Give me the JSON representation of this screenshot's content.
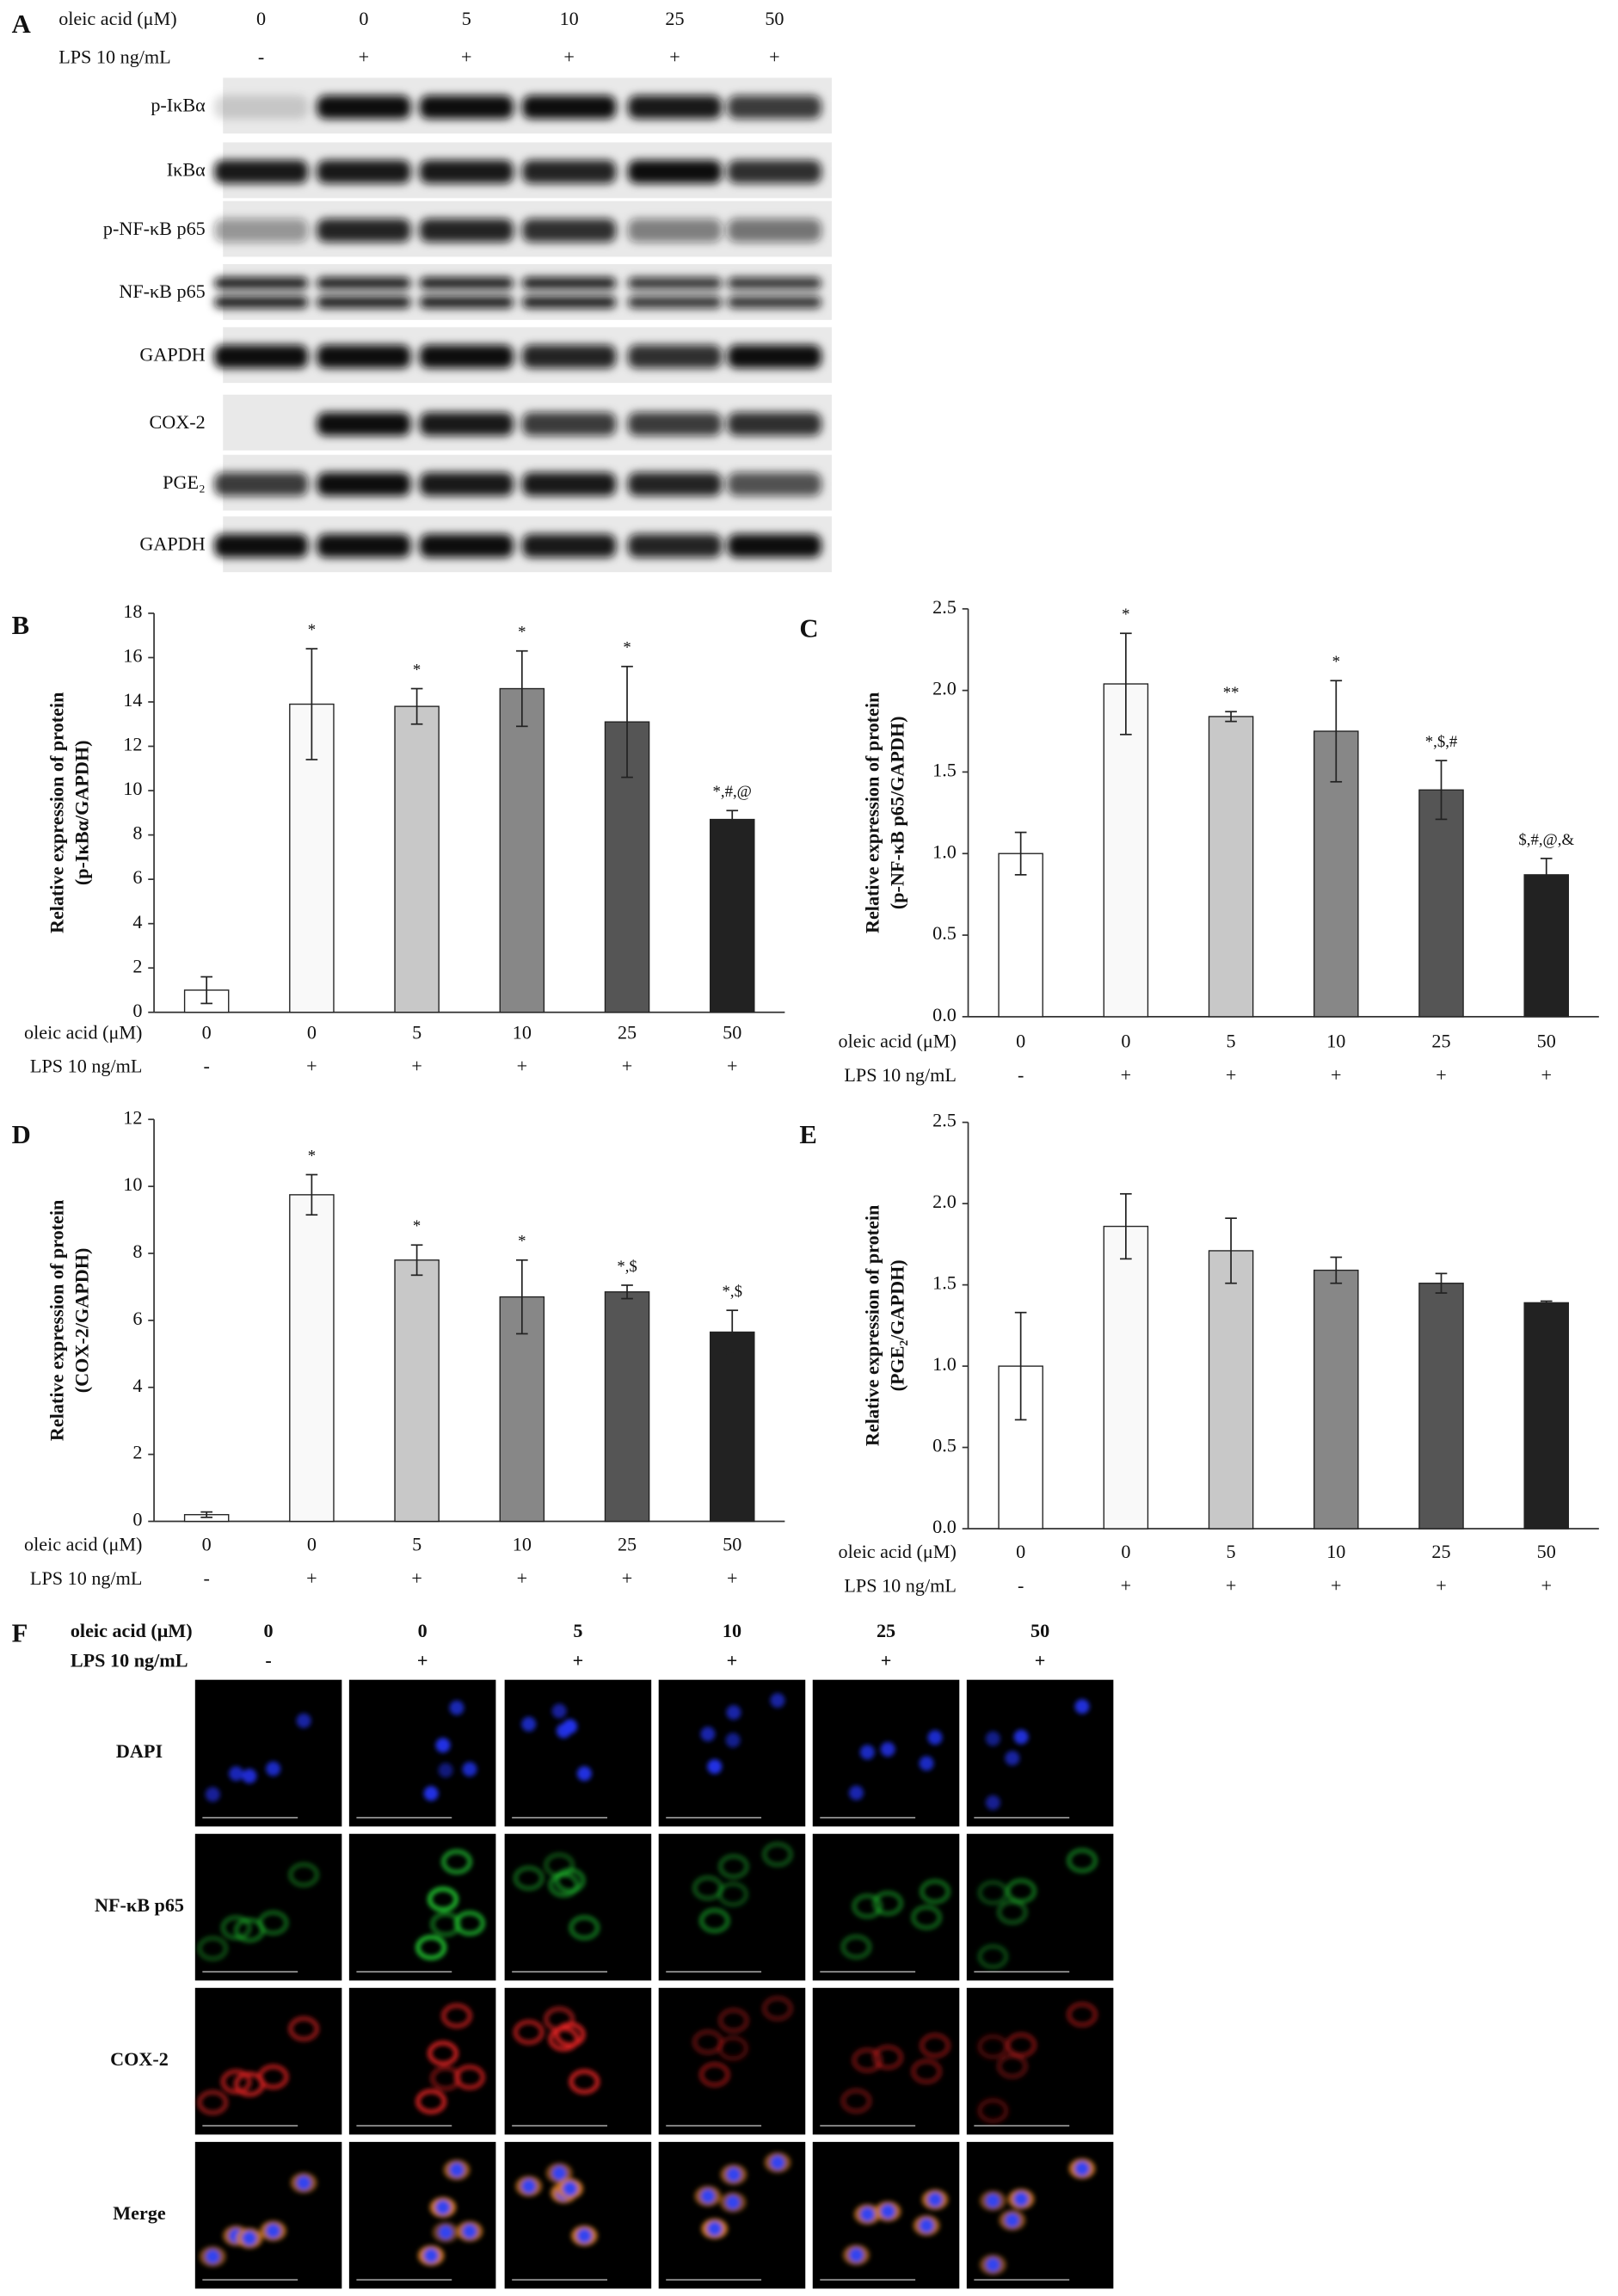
{
  "blot": {
    "panel": "A",
    "row_labels": [
      "oleic acid (μM)",
      "LPS 10 ng/mL"
    ],
    "concentrations": [
      "0",
      "0",
      "5",
      "10",
      "25",
      "50"
    ],
    "lps": [
      "-",
      "+",
      "+",
      "+",
      "+",
      "+"
    ],
    "proteins": [
      "p-IκBα",
      "IκBα",
      "p-NF-κB p65",
      "NF-κB p65",
      "GAPDH",
      "COX-2",
      "PGE₂",
      "GAPDH"
    ]
  },
  "chart_data": [
    {
      "type": "bar",
      "panel": "B",
      "ylabel": [
        "Relative expression of protein",
        "(p-IκBα/GAPDH)"
      ],
      "row_labels": [
        "oleic acid (μM)",
        "LPS 10 ng/mL"
      ],
      "categories": [
        "0",
        "0",
        "5",
        "10",
        "25",
        "50"
      ],
      "lps": [
        "-",
        "+",
        "+",
        "+",
        "+",
        "+"
      ],
      "values": [
        1.0,
        13.9,
        13.8,
        14.6,
        13.1,
        8.7
      ],
      "errors": [
        0.6,
        2.5,
        0.8,
        1.7,
        2.5,
        0.4
      ],
      "annotations": [
        null,
        "*",
        "*",
        "*",
        "*",
        "*,#,@"
      ],
      "colors": [
        "#ffffff",
        "#f9f9f9",
        "#c8c8c8",
        "#878787",
        "#555555",
        "#222222"
      ],
      "ylim": [
        0,
        18
      ],
      "yticks": [
        0,
        2,
        4,
        6,
        8,
        10,
        12,
        14,
        16,
        18
      ]
    },
    {
      "type": "bar",
      "panel": "C",
      "ylabel": [
        "Relative expression of protein",
        "(p-NF-κB p65/GAPDH)"
      ],
      "row_labels": [
        "oleic acid (μM)",
        "LPS 10 ng/mL"
      ],
      "categories": [
        "0",
        "0",
        "5",
        "10",
        "25",
        "50"
      ],
      "lps": [
        "-",
        "+",
        "+",
        "+",
        "+",
        "+"
      ],
      "values": [
        1.0,
        2.04,
        1.84,
        1.75,
        1.39,
        0.87
      ],
      "errors": [
        0.13,
        0.31,
        0.03,
        0.31,
        0.18,
        0.1
      ],
      "annotations": [
        null,
        "*",
        "**",
        "*",
        "*,$,#",
        "$,#,@,&"
      ],
      "colors": [
        "#ffffff",
        "#f9f9f9",
        "#c8c8c8",
        "#878787",
        "#555555",
        "#222222"
      ],
      "ylim": [
        0,
        2.5
      ],
      "yticks": [
        {
          "value": 0,
          "label": "0.0"
        },
        0.5,
        {
          "value": 1,
          "label": "1.0"
        },
        1.5,
        {
          "value": 2,
          "label": "2.0"
        },
        2.5
      ]
    },
    {
      "type": "bar",
      "panel": "D",
      "ylabel": [
        "Relative expression of protein",
        "(COX-2/GAPDH)"
      ],
      "row_labels": [
        "oleic acid (μM)",
        "LPS 10 ng/mL"
      ],
      "categories": [
        "0",
        "0",
        "5",
        "10",
        "25",
        "50"
      ],
      "lps": [
        "-",
        "+",
        "+",
        "+",
        "+",
        "+"
      ],
      "values": [
        0.2,
        9.75,
        7.8,
        6.7,
        6.85,
        5.65
      ],
      "errors": [
        0.08,
        0.6,
        0.45,
        1.1,
        0.2,
        0.65
      ],
      "annotations": [
        null,
        "*",
        "*",
        "*",
        "*,$",
        "*,$"
      ],
      "colors": [
        "#ffffff",
        "#f9f9f9",
        "#c8c8c8",
        "#878787",
        "#555555",
        "#222222"
      ],
      "ylim": [
        0,
        12
      ],
      "yticks": [
        0,
        2,
        4,
        6,
        8,
        10,
        12
      ]
    },
    {
      "type": "bar",
      "panel": "E",
      "ylabel": [
        "Relative expression of protein",
        "(PGE₂/GAPDH)"
      ],
      "row_labels": [
        "oleic acid (μM)",
        "LPS 10 ng/mL"
      ],
      "categories": [
        "0",
        "0",
        "5",
        "10",
        "25",
        "50"
      ],
      "lps": [
        "-",
        "+",
        "+",
        "+",
        "+",
        "+"
      ],
      "values": [
        1.0,
        1.86,
        1.71,
        1.59,
        1.51,
        1.39
      ],
      "errors": [
        0.33,
        0.2,
        0.2,
        0.08,
        0.06,
        0.01
      ],
      "colors": [
        "#ffffff",
        "#f9f9f9",
        "#c8c8c8",
        "#878787",
        "#555555",
        "#222222"
      ],
      "ylim": [
        0,
        2.5
      ],
      "yticks": [
        {
          "value": 0,
          "label": "0.0"
        },
        0.5,
        {
          "value": 1,
          "label": "1.0"
        },
        1.5,
        {
          "value": 2,
          "label": "2.0"
        },
        2.5
      ]
    }
  ],
  "microscopy": {
    "panel": "F",
    "row_labels": [
      "oleic acid (μM)",
      "LPS 10 ng/mL"
    ],
    "concentrations": [
      "0",
      "0",
      "5",
      "10",
      "25",
      "50"
    ],
    "lps": [
      "-",
      "+",
      "+",
      "+",
      "+",
      "+"
    ],
    "channels": [
      "DAPI",
      "NF-κB p65",
      "COX-2",
      "Merge"
    ]
  }
}
